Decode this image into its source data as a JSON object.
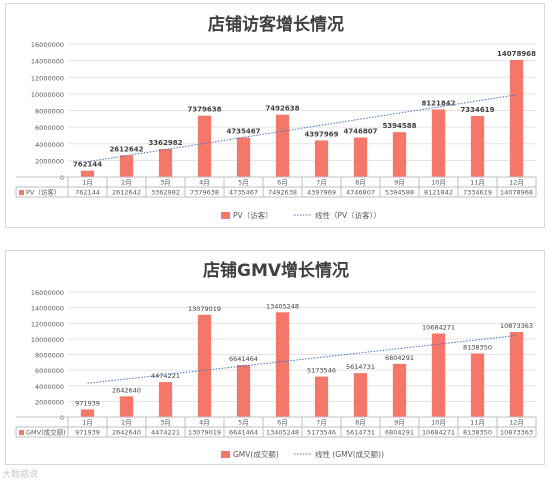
{
  "chart_data": [
    {
      "type": "bar",
      "title": "店铺访客增长情况",
      "categories": [
        "1月",
        "2月",
        "3月",
        "4月",
        "5月",
        "6月",
        "7月",
        "8月",
        "9月",
        "10月",
        "11月",
        "12月"
      ],
      "series": [
        {
          "name": "PV（访客）",
          "values": [
            762144,
            2612642,
            3362982,
            7379638,
            4735467,
            7492638,
            4397969,
            4746807,
            5394588,
            8121842,
            7334619,
            14078968
          ],
          "color": "#f4786a"
        }
      ],
      "trendline": {
        "name": "线性（PV（访客））",
        "color": "#4472c4"
      },
      "ylim": [
        0,
        16000000
      ],
      "yticks": [
        0,
        2000000,
        4000000,
        6000000,
        8000000,
        10000000,
        12000000,
        14000000,
        16000000
      ],
      "grid": true,
      "legend": "bottom",
      "data_table": true,
      "table_labels": [
        "762144",
        "2612642",
        "3362982",
        "7379638",
        "4735467",
        "7492638",
        "4397969",
        "4746807",
        "5394588",
        "8121842",
        "7334619",
        "14078968"
      ]
    },
    {
      "type": "bar",
      "title": "店铺GMV增长情况",
      "categories": [
        "1月",
        "2月",
        "3月",
        "4月",
        "5月",
        "6月",
        "7月",
        "8月",
        "9月",
        "10月",
        "11月",
        "12月"
      ],
      "series": [
        {
          "name": "GMV(成交额)",
          "values": [
            971939,
            2642640,
            4474221,
            13079019,
            6641464,
            13405248,
            5173546,
            5614731,
            6804291,
            10684271,
            8138350,
            10873363
          ],
          "color": "#f4786a"
        }
      ],
      "trendline": {
        "name": "线性 (GMV(成交额))",
        "color": "#4472c4"
      },
      "ylim": [
        0,
        16000000
      ],
      "yticks": [
        0,
        2000000,
        4000000,
        6000000,
        8000000,
        10000000,
        12000000,
        14000000,
        16000000
      ],
      "grid": true,
      "legend": "bottom",
      "data_table": true,
      "table_labels": [
        "971939",
        "2642640",
        "4474221",
        "13079019",
        "6641464",
        "13405248",
        "5173546",
        "5614731",
        "6804291",
        "10684271",
        "8138350",
        "10873363"
      ]
    }
  ],
  "watermark": "大数据说"
}
